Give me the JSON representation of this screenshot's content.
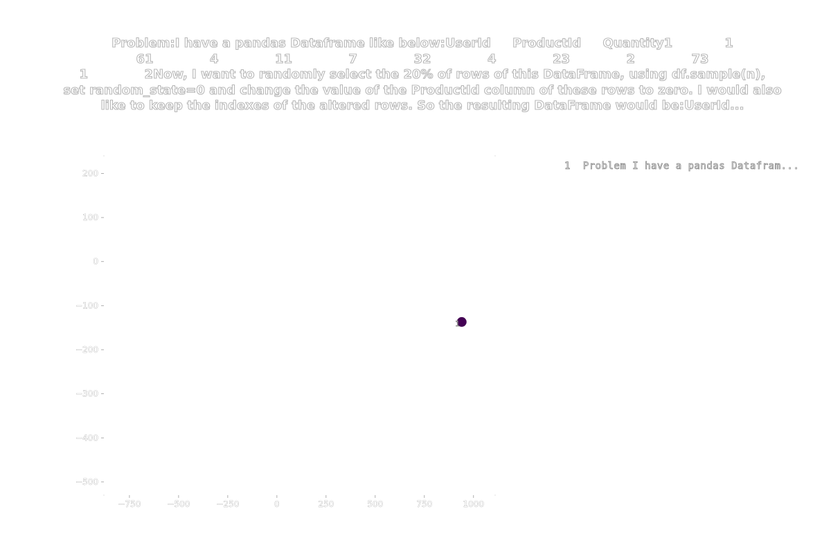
{
  "title_lines": [
    "Problem:I have a pandas Dataframe like below:UserId     ProductId     Quantity1            1",
    "61             4             11             7             32             4             23             2             73",
    "1             2Now, I want to randomly select the 20% of rows of this DataFrame, using df.sample(n),",
    "set random_state=0 and change the value of the ProductId column of these rows to zero. I would also",
    "like to keep the indexes of the altered rows. So the resulting DataFrame would be:UserId..."
  ],
  "legend_text": "1  Problem I have a pandas Datafram...",
  "colors": {
    "point": "#440154",
    "title_outline": "#b8b8b8",
    "tick": "#9a9a9a"
  },
  "chart_data": {
    "type": "scatter",
    "title": "Problem:I have a pandas Dataframe like below:UserId     ProductId     Quantity1            1 61             4             11             7             32             4             23             2             73 1             2Now, I want to randomly select the 20% of rows of this DataFrame, using df.sample(n), set random_state=0 and change the value of the ProductId column of these rows to zero. I would also like to keep the indexes of the altered rows. So the resulting DataFrame would be:UserId...",
    "xlabel": "",
    "ylabel": "",
    "xlim": [
      -880,
      1110
    ],
    "ylim": [
      -530,
      240
    ],
    "x_ticks": [
      -750,
      -500,
      -250,
      0,
      250,
      500,
      750,
      1000
    ],
    "y_ticks": [
      200,
      100,
      0,
      -100,
      -200,
      -300,
      -400,
      -500
    ],
    "x_tick_labels": [
      "−750",
      "−500",
      "−250",
      "0",
      "250",
      "500",
      "750",
      "1000"
    ],
    "y_tick_labels": [
      "200",
      "100",
      "0",
      "−100",
      "−200",
      "−300",
      "−400",
      "−500"
    ],
    "grid": false,
    "legend_position": "top-right",
    "points": [
      {
        "x": 940,
        "y": -137,
        "label": "1"
      }
    ]
  }
}
